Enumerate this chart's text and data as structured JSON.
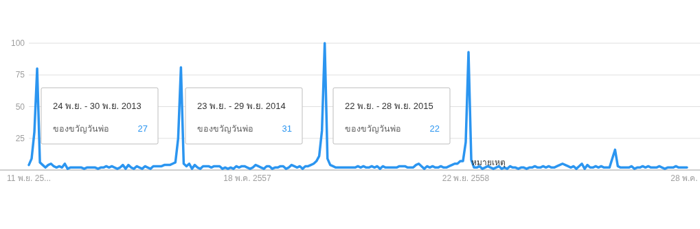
{
  "chart_data": {
    "type": "line",
    "ylim": [
      0,
      100
    ],
    "yticks": [
      {
        "value": 0,
        "label": null
      },
      25,
      50,
      75,
      100
    ],
    "grid": "y",
    "marker": "none",
    "line_style": "solid",
    "categories": [
      "11 พ.ย. 25...",
      null,
      null,
      null,
      null,
      null,
      null,
      null,
      null,
      null,
      null,
      null,
      null,
      null,
      null,
      null,
      null,
      null,
      null,
      null,
      null,
      null,
      null,
      null,
      null,
      null,
      null,
      null,
      null,
      null,
      null,
      null,
      null,
      null,
      null,
      null,
      null,
      null,
      null,
      null,
      null,
      null,
      null,
      null,
      null,
      null,
      null,
      null,
      null,
      null,
      null,
      null,
      null,
      null,
      null,
      null,
      null,
      null,
      null,
      null,
      null,
      null,
      null,
      null,
      null,
      null,
      null,
      null,
      null,
      null,
      null,
      null,
      null,
      null,
      null,
      null,
      null,
      null,
      null,
      "18 พ.ค. 2557",
      null,
      null,
      null,
      null,
      null,
      null,
      null,
      null,
      null,
      null,
      null,
      null,
      null,
      null,
      null,
      null,
      null,
      null,
      null,
      null,
      null,
      null,
      null,
      null,
      null,
      null,
      null,
      null,
      null,
      null,
      null,
      null,
      null,
      null,
      null,
      null,
      null,
      null,
      null,
      null,
      null,
      null,
      null,
      null,
      null,
      null,
      null,
      null,
      null,
      null,
      null,
      null,
      null,
      null,
      null,
      null,
      null,
      null,
      null,
      null,
      null,
      null,
      null,
      null,
      null,
      null,
      null,
      null,
      null,
      null,
      null,
      null,
      null,
      null,
      null,
      null,
      null,
      null,
      "22 พ.ย. 2558",
      null,
      null,
      null,
      null,
      null,
      null,
      null,
      null,
      null,
      null,
      null,
      null,
      null,
      null,
      null,
      null,
      null,
      null,
      null,
      null,
      null,
      null,
      null,
      null,
      null,
      null,
      null,
      null,
      null,
      null,
      null,
      null,
      null,
      null,
      null,
      null,
      null,
      null,
      null,
      null,
      null,
      null,
      null,
      null,
      null,
      null,
      null,
      null,
      null,
      null,
      null,
      null,
      null,
      null,
      null,
      null,
      null,
      null,
      null,
      null,
      null,
      null,
      null,
      null,
      null,
      null,
      null,
      null,
      null,
      null,
      null,
      null,
      null,
      null,
      null,
      null,
      null,
      null,
      "28 พ.ค.",
      null
    ],
    "series": [
      {
        "name": "ของขวัญวันพ่อ",
        "color": "#2b95f0",
        "values": [
          4,
          9,
          30,
          80,
          6,
          4,
          2,
          4,
          5,
          3,
          2,
          3,
          2,
          5,
          1,
          2,
          2,
          2,
          2,
          2,
          1,
          2,
          2,
          2,
          2,
          1,
          2,
          2,
          3,
          2,
          3,
          2,
          1,
          2,
          4,
          1,
          4,
          2,
          1,
          3,
          2,
          1,
          3,
          2,
          1,
          3,
          3,
          3,
          3,
          4,
          4,
          4,
          5,
          6,
          25,
          81,
          5,
          3,
          5,
          1,
          4,
          2,
          1,
          3,
          3,
          3,
          2,
          3,
          3,
          3,
          1,
          2,
          1,
          2,
          1,
          3,
          2,
          3,
          3,
          2,
          1,
          2,
          4,
          3,
          2,
          1,
          3,
          3,
          1,
          2,
          2,
          3,
          3,
          1,
          2,
          4,
          3,
          2,
          3,
          1,
          3,
          3,
          4,
          5,
          7,
          11,
          31,
          100,
          9,
          4,
          3,
          2,
          2,
          2,
          2,
          2,
          2,
          2,
          2,
          3,
          2,
          3,
          2,
          2,
          3,
          2,
          3,
          1,
          3,
          2,
          2,
          2,
          2,
          2,
          3,
          3,
          3,
          2,
          2,
          2,
          4,
          5,
          3,
          1,
          3,
          2,
          3,
          2,
          2,
          3,
          2,
          2,
          3,
          4,
          5,
          5,
          7,
          7,
          22,
          93,
          8,
          2,
          2,
          3,
          1,
          2,
          3,
          2,
          1,
          2,
          3,
          1,
          2,
          1,
          3,
          2,
          2,
          1,
          2,
          2,
          1,
          2,
          2,
          3,
          2,
          2,
          3,
          2,
          3,
          2,
          2,
          3,
          4,
          5,
          4,
          3,
          2,
          3,
          1,
          3,
          5,
          1,
          4,
          2,
          2,
          3,
          2,
          3,
          2,
          2,
          2,
          9,
          16,
          3,
          2,
          2,
          2,
          2,
          3,
          1,
          2,
          2,
          3,
          2,
          3,
          2,
          2,
          2,
          3,
          2,
          1,
          2,
          2,
          2,
          3,
          2,
          2,
          2,
          2
        ]
      }
    ],
    "annotations": [
      "24 พ.ย. - 30 พ.ย. 2013",
      "27",
      "23 พ.ย. - 29 พ.ย. 2014",
      "31",
      "22 พ.ย. - 28 พ.ย. 2015",
      "22",
      "หมายเหตุ"
    ]
  }
}
